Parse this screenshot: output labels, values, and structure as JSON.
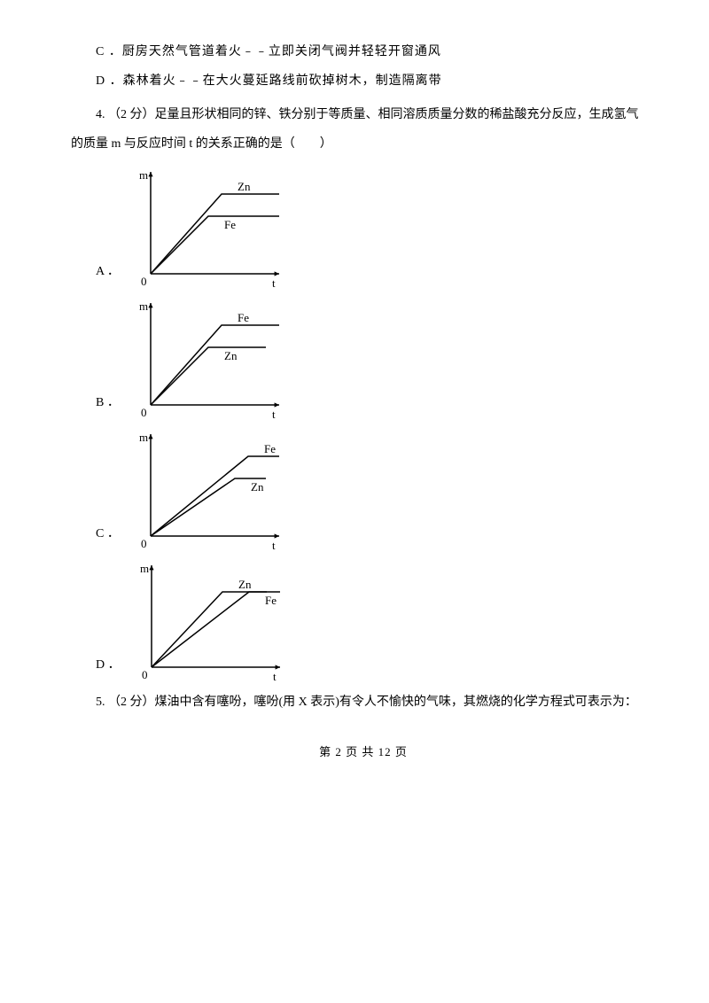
{
  "opts": {
    "c": "C ．厨房天然气管道着火﹣﹣立即关闭气阀并轻轻开窗通风",
    "d": "D ．森林着火﹣﹣在大火蔓延路线前砍掉树木，制造隔离带"
  },
  "q4": {
    "line1": "4. （2 分）足量且形状相同的锌、铁分别于等质量、相同溶质质量分数的稀盐酸充分反应，生成氢气",
    "line2": "的质量 m 与反应时间 t 的关系正确的是（　　）",
    "labels": {
      "A": "A ．",
      "B": "B ．",
      "C": "C ．",
      "D": "D ．"
    },
    "axis": {
      "m": "m",
      "t": "t",
      "o": "0"
    },
    "charts": {
      "A": {
        "upper": "Zn",
        "lower": "Fe",
        "upper_end": 145,
        "lower_end": 145,
        "upper_bend_t": 80,
        "lower_bend_t": 65,
        "upper_h": 35,
        "lower_h": 60
      },
      "B": {
        "upper": "Fe",
        "lower": "Zn",
        "upper_end": 145,
        "lower_end": 130,
        "upper_bend_t": 80,
        "lower_bend_t": 65,
        "upper_h": 35,
        "lower_h": 60
      },
      "C": {
        "upper": "Fe",
        "lower": "Zn",
        "upper_end": 145,
        "lower_end": 130,
        "upper_bend_t": 110,
        "lower_bend_t": 95,
        "upper_h": 35,
        "lower_h": 60
      },
      "D": {
        "upper": "Zn",
        "lower": "Fe",
        "upper_end": 145,
        "lower_end": 130,
        "upper_bend_t": 80,
        "lower_bend_t": 110,
        "upper_h": 40,
        "lower_h": 40
      }
    },
    "svg": {
      "w": 180,
      "h": 140,
      "ox": 25,
      "oy": 125
    }
  },
  "q5": {
    "text": "5. （2 分）煤油中含有噻吩，噻吩(用 X 表示)有令人不愉快的气味，其燃烧的化学方程式可表示为："
  },
  "footer": "第 2 页 共 12 页"
}
